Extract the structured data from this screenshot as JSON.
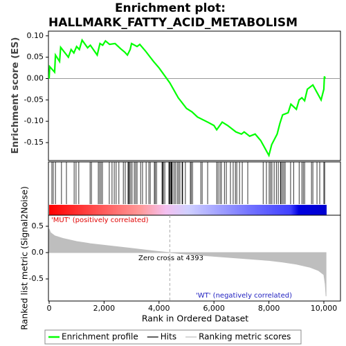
{
  "chart_data": [
    {
      "type": "line",
      "title_lines": [
        "Enrichment plot:",
        "HALLMARK_FATTY_ACID_METABOLISM"
      ],
      "y_label": "Enrichment score (ES)",
      "xlim": [
        0,
        10600
      ],
      "ylim": [
        -0.192,
        0.111
      ],
      "yticks": [
        {
          "value": 0.1,
          "label": "0.10"
        },
        {
          "value": 0.05,
          "label": "0.05"
        },
        {
          "value": 0,
          "label": "0.00"
        },
        {
          "value": -0.05,
          "label": "-0.05"
        },
        {
          "value": -0.1,
          "label": "-0.10"
        },
        {
          "value": -0.15,
          "label": "-0.15"
        }
      ],
      "x": [
        0,
        20,
        200,
        230,
        380,
        420,
        700,
        800,
        900,
        1000,
        1100,
        1200,
        1400,
        1500,
        1750,
        1850,
        1950,
        2050,
        2200,
        2400,
        2600,
        2750,
        2850,
        2950,
        3000,
        3200,
        3300,
        3500,
        3800,
        4000,
        4393,
        4700,
        5000,
        5200,
        5400,
        5800,
        6000,
        6100,
        6300,
        6500,
        6800,
        7000,
        7100,
        7300,
        7500,
        7700,
        8000,
        8100,
        8300,
        8400,
        8500,
        8700,
        8800,
        9000,
        9100,
        9200,
        9300,
        9400,
        9600,
        9900,
        10000,
        10020,
        10050
      ],
      "series": [
        {
          "name": "Enrichment profile",
          "color": "#00ff00",
          "values": [
            0.0,
            0.028,
            0.015,
            0.055,
            0.04,
            0.073,
            0.05,
            0.068,
            0.06,
            0.075,
            0.068,
            0.09,
            0.072,
            0.078,
            0.055,
            0.082,
            0.078,
            0.088,
            0.08,
            0.082,
            0.07,
            0.062,
            0.055,
            0.068,
            0.082,
            0.075,
            0.08,
            0.065,
            0.04,
            0.025,
            -0.01,
            -0.045,
            -0.07,
            -0.078,
            -0.09,
            -0.103,
            -0.11,
            -0.12,
            -0.102,
            -0.11,
            -0.125,
            -0.13,
            -0.125,
            -0.135,
            -0.13,
            -0.145,
            -0.18,
            -0.155,
            -0.13,
            -0.105,
            -0.085,
            -0.08,
            -0.06,
            -0.072,
            -0.05,
            -0.045,
            -0.052,
            -0.025,
            -0.015,
            -0.05,
            -0.025,
            0.005,
            0.0
          ]
        }
      ]
    },
    {
      "type": "rug",
      "xlim": [
        0,
        10600
      ],
      "series": [
        {
          "name": "Hits",
          "color": "#000000",
          "x": [
            100,
            150,
            230,
            450,
            630,
            910,
            980,
            1080,
            1490,
            1540,
            1790,
            1840,
            1890,
            1940,
            2190,
            2290,
            2370,
            2440,
            2540,
            2700,
            2770,
            2870,
            2900,
            2920,
            2970,
            3020,
            3100,
            3150,
            3200,
            3330,
            3400,
            3530,
            3630,
            3680,
            3830,
            3860,
            3910,
            4110,
            4130,
            4160,
            4210,
            4360,
            4380,
            4410,
            4440,
            4460,
            4480,
            4540,
            4590,
            4660,
            4710,
            4760,
            4840,
            4860,
            4960,
            5140,
            5170,
            5220,
            5520,
            5570,
            5770,
            6100,
            6150,
            6220,
            6270,
            6380,
            6450,
            6600,
            6700,
            6780,
            6830,
            6930,
            7030,
            7230,
            7790,
            7910,
            8010,
            8060,
            8110,
            8190,
            8270,
            8340,
            8420,
            8440,
            8490,
            8540,
            8590,
            8790,
            8900,
            9100,
            9200,
            9250,
            9300,
            9550,
            9600,
            9750,
            9850,
            10000,
            10030
          ]
        }
      ]
    },
    {
      "type": "area",
      "x_label": "Rank in Ordered Dataset",
      "y_label": "Ranked list metric (Signal2Noise)",
      "annotations": [
        "'MUT' (positively correlated)",
        "Zero cross at 4393",
        "'WT' (negatively correlated)"
      ],
      "zero_cross": 4393,
      "xlim": [
        0,
        10600
      ],
      "xticks": [
        0,
        {
          "value": 2000,
          "label": "2,000"
        },
        {
          "value": 4000,
          "label": "4,000"
        },
        {
          "value": 6000,
          "label": "6,000"
        },
        {
          "value": 8000,
          "label": "8,000"
        },
        {
          "value": 10000,
          "label": "10,000"
        }
      ],
      "ylim": [
        -0.92,
        0.71
      ],
      "yticks": [
        {
          "value": 0.5,
          "label": "0.5"
        },
        {
          "value": 0,
          "label": "0.0"
        },
        {
          "value": -0.5,
          "label": "-0.5"
        }
      ],
      "x": [
        0,
        50,
        200,
        500,
        1000,
        1500,
        2000,
        2500,
        3000,
        3500,
        4000,
        4393,
        5000,
        6000,
        7000,
        8000,
        8500,
        9000,
        9500,
        9800,
        10000,
        10050,
        10080
      ],
      "series": [
        {
          "name": "Ranking metric scores",
          "color": "#bebebe",
          "values": [
            0.45,
            0.38,
            0.32,
            0.27,
            0.21,
            0.17,
            0.14,
            0.11,
            0.08,
            0.05,
            0.02,
            0,
            -0.03,
            -0.07,
            -0.11,
            -0.15,
            -0.18,
            -0.22,
            -0.28,
            -0.34,
            -0.42,
            -0.6,
            -0.83
          ]
        }
      ]
    }
  ]
}
